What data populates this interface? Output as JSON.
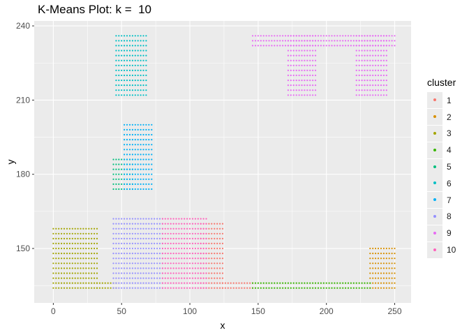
{
  "chart_data": {
    "type": "scatter",
    "title": "K-Means Plot: k =  10",
    "xlabel": "x",
    "ylabel": "y",
    "xlim": [
      -14,
      262
    ],
    "ylim": [
      128,
      242
    ],
    "x_ticks": [
      0,
      50,
      100,
      150,
      200,
      250
    ],
    "y_ticks": [
      150,
      180,
      210,
      240
    ],
    "x_tick_labels": [
      "0",
      "50",
      "100",
      "150",
      "200",
      "250"
    ],
    "y_tick_labels": [
      "150",
      "180",
      "210",
      "240"
    ],
    "grid": true,
    "legend_title": "cluster",
    "legend_position": "right",
    "series": [
      {
        "name": "1",
        "color": "#F8766D",
        "regions": [
          {
            "x": [
              108,
              124
            ],
            "y": [
              134,
              160
            ]
          },
          {
            "x": [
              124,
              146
            ],
            "y": [
              134,
              136
            ]
          }
        ]
      },
      {
        "name": "2",
        "color": "#D89000",
        "regions": [
          {
            "x": [
              232,
              250
            ],
            "y": [
              134,
              150
            ]
          }
        ]
      },
      {
        "name": "3",
        "color": "#A3A500",
        "regions": [
          {
            "x": [
              0,
              32
            ],
            "y": [
              134,
              158
            ]
          },
          {
            "x": [
              32,
              46
            ],
            "y": [
              134,
              136
            ]
          }
        ]
      },
      {
        "name": "4",
        "color": "#39B600",
        "regions": [
          {
            "x": [
              146,
              232
            ],
            "y": [
              134,
              136
            ]
          }
        ]
      },
      {
        "name": "5",
        "color": "#00BF7D",
        "regions": [
          {
            "x": [
              44,
              58
            ],
            "y": [
              174,
              186
            ]
          }
        ]
      },
      {
        "name": "6",
        "color": "#00BFC4",
        "regions": [
          {
            "x": [
              46,
              68
            ],
            "y": [
              212,
              236
            ]
          }
        ]
      },
      {
        "name": "7",
        "color": "#00B0F6",
        "regions": [
          {
            "x": [
              52,
              72
            ],
            "y": [
              174,
              200
            ]
          }
        ]
      },
      {
        "name": "8",
        "color": "#9590FF",
        "regions": [
          {
            "x": [
              44,
              80
            ],
            "y": [
              134,
              162
            ]
          }
        ]
      },
      {
        "name": "9",
        "color": "#E76BF3",
        "regions": [
          {
            "x": [
              146,
              250
            ],
            "y": [
              232,
              236
            ]
          },
          {
            "x": [
              172,
              192
            ],
            "y": [
              212,
              236
            ]
          },
          {
            "x": [
              222,
              244
            ],
            "y": [
              212,
              236
            ]
          }
        ]
      },
      {
        "name": "10",
        "color": "#FF62BC",
        "regions": [
          {
            "x": [
              80,
              112
            ],
            "y": [
              134,
              162
            ]
          }
        ]
      }
    ]
  }
}
